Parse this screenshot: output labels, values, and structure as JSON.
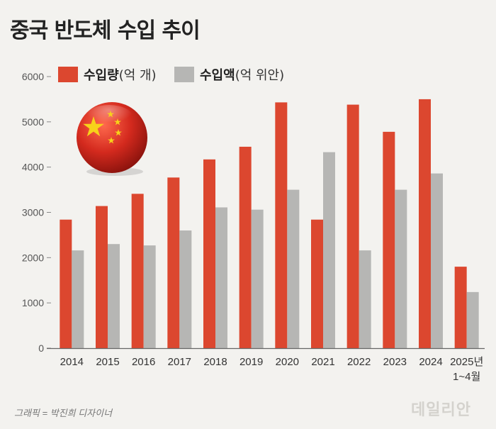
{
  "title": "중국 반도체 수입 추이",
  "legend": {
    "series1_bold": "수입량",
    "series1_unit": "(억 개)",
    "series2_bold": "수입액",
    "series2_unit": "(억 위안)"
  },
  "credit": "그래픽 = 박진희 디자이너",
  "logo": "데일리안",
  "colors": {
    "volume": "#dc472f",
    "value": "#b6b6b4",
    "flag_red": "#d42a1e",
    "flag_star": "#f7d21a"
  },
  "chart_data": {
    "type": "bar",
    "title": "중국 반도체 수입 추이",
    "categories": [
      "2014",
      "2015",
      "2016",
      "2017",
      "2018",
      "2019",
      "2020",
      "2021",
      "2022",
      "2023",
      "2024",
      "2025년 1~4월"
    ],
    "category_labels": [
      [
        "2014"
      ],
      [
        "2015"
      ],
      [
        "2016"
      ],
      [
        "2017"
      ],
      [
        "2018"
      ],
      [
        "2019"
      ],
      [
        "2020"
      ],
      [
        "2021"
      ],
      [
        "2022"
      ],
      [
        "2023"
      ],
      [
        "2024"
      ],
      [
        "2025년",
        "1~4월"
      ]
    ],
    "series": [
      {
        "name": "수입량(억 개)",
        "values": [
          2840,
          3140,
          3410,
          3770,
          4170,
          4450,
          5430,
          2840,
          5380,
          4780,
          5500,
          1800
        ]
      },
      {
        "name": "수입액(억 위안)",
        "values": [
          2160,
          2300,
          2270,
          2600,
          3110,
          3060,
          3500,
          4330,
          2160,
          3500,
          3860,
          1240
        ]
      }
    ],
    "yticks": [
      0,
      1000,
      2000,
      3000,
      4000,
      5000,
      6000
    ],
    "ylim": [
      0,
      6000
    ],
    "xlabel": "",
    "ylabel": "",
    "grid": false
  }
}
